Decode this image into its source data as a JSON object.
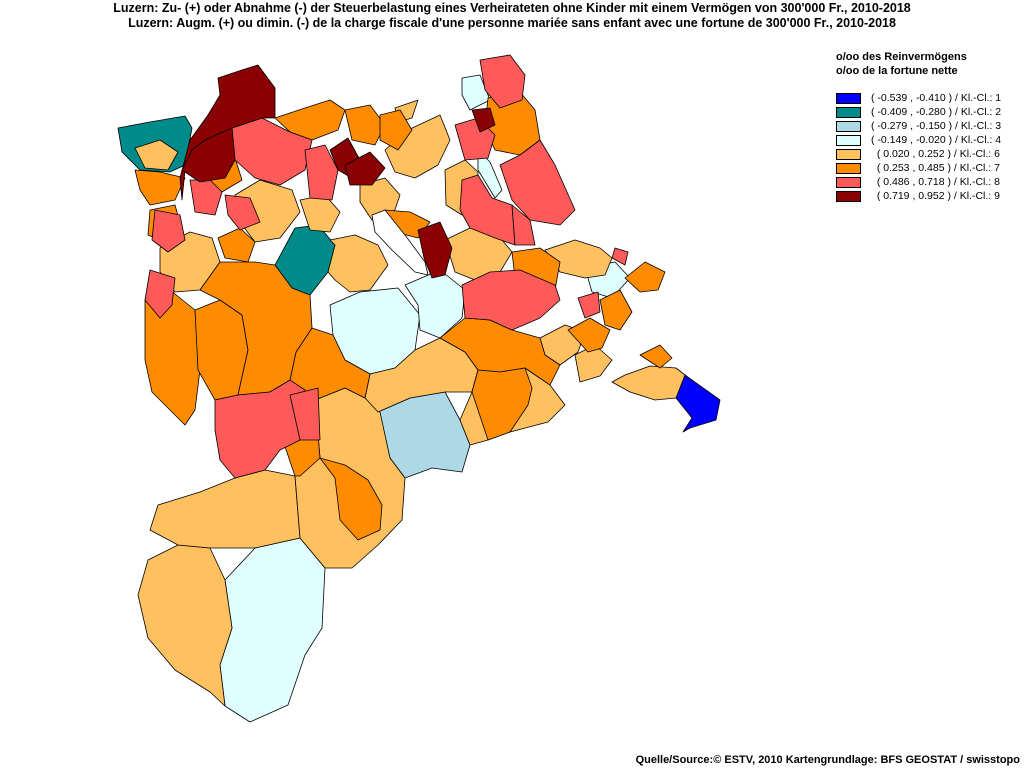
{
  "title_de": "Luzern: Zu- (+) oder Abnahme (-) der Steuerbelastung  eines Verheirateten ohne Kinder mit einem Vermögen von 300'000 Fr., 2010-2018",
  "title_fr": "Luzern: Augm. (+) ou dimin. (-) de la charge fiscale d'une personne mariée sans enfant avec une fortune de 300'000 Fr., 2010-2018",
  "legend": {
    "header_de": "o/oo des Reinvermögens",
    "header_fr": "o/oo de la fortune nette",
    "classes": [
      {
        "label": "( -0.539 , -0.410 ) / Kl.-Cl.: 1",
        "color": "#0000ff"
      },
      {
        "label": "( -0.409 , -0.280 ) / Kl.-Cl.: 2",
        "color": "#008b8b"
      },
      {
        "label": "( -0.279 , -0.150 ) / Kl.-Cl.: 3",
        "color": "#add8e6"
      },
      {
        "label": "( -0.149 , -0.020 ) / Kl.-Cl.: 4",
        "color": "#e0ffff"
      },
      {
        "label": "  ( 0.020 , 0.252 ) / Kl.-Cl.: 6",
        "color": "#ffc060"
      },
      {
        "label": "  ( 0.253 , 0.485 ) / Kl.-Cl.: 7",
        "color": "#ff8c00"
      },
      {
        "label": "  ( 0.486 , 0.718 ) / Kl.-Cl.: 8",
        "color": "#ff5a5a"
      },
      {
        "label": "  ( 0.719 , 0.952 ) / Kl.-Cl.: 9",
        "color": "#8b0000"
      }
    ]
  },
  "source": "Quelle/Source:© ESTV, 2010 Kartengrundlage: BFS GEOSTAT / swisstopo"
}
